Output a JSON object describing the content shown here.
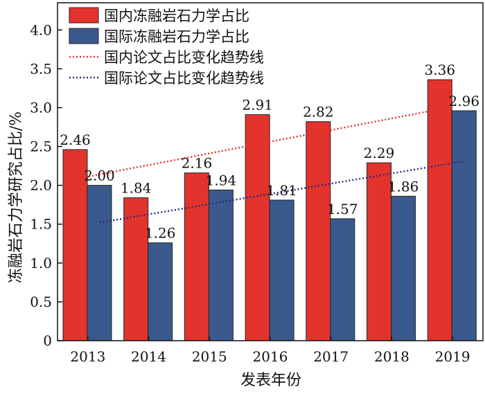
{
  "colors": {
    "domestic": "#e3332d",
    "international": "#3a5a8e",
    "domestic_trend": "#e3332d",
    "international_trend": "#2e2a7a"
  },
  "chart_data": {
    "type": "bar",
    "categories": [
      "2013",
      "2014",
      "2015",
      "2016",
      "2017",
      "2018",
      "2019"
    ],
    "series": [
      {
        "name": "国内冻融岩石力学占比",
        "values": [
          2.46,
          1.84,
          2.16,
          2.91,
          2.82,
          2.29,
          3.36
        ],
        "color": "#e3332d"
      },
      {
        "name": "国际冻融岩石力学占比",
        "values": [
          2.0,
          1.26,
          1.94,
          1.81,
          1.57,
          1.86,
          2.96
        ],
        "color": "#3a5a8e"
      }
    ],
    "data_labels": [
      [
        "2.46",
        "1.84",
        "2.16",
        "2.91",
        "2.82",
        "2.29",
        "3.36"
      ],
      [
        "2.00",
        "1.26",
        "1.94",
        "1.81",
        "1.57",
        "1.86",
        "2.96"
      ]
    ],
    "trendlines": [
      {
        "name": "国内论文占比变化趋势线",
        "start": 2.08,
        "end": 2.98,
        "style": "dotted",
        "color": "#e3332d"
      },
      {
        "name": "国际论文占比变化趋势线",
        "start": 1.52,
        "end": 2.31,
        "style": "dotted",
        "color": "#2e2a7a"
      }
    ],
    "xlabel": "发表年份",
    "ylabel": "冻融岩石力学研究占比/%",
    "ylim": [
      0,
      4.35
    ],
    "yticks": [
      "0",
      "0.5",
      "1.0",
      "1.5",
      "2.0",
      "2.5",
      "3.0",
      "3.5",
      "4.0"
    ],
    "ytick_values": [
      0,
      0.5,
      1.0,
      1.5,
      2.0,
      2.5,
      3.0,
      3.5,
      4.0
    ],
    "grid": false,
    "legend_position": "top-left"
  }
}
